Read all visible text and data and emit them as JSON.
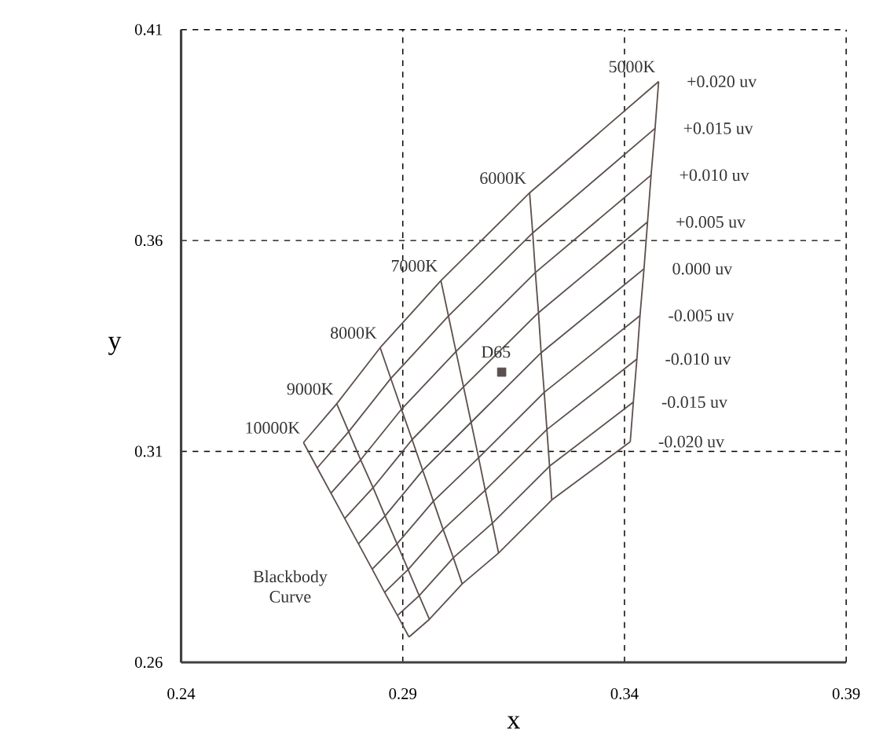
{
  "chart_data": {
    "type": "line",
    "xlabel": "x",
    "ylabel": "y",
    "xlim": [
      0.24,
      0.39
    ],
    "ylim": [
      0.26,
      0.41
    ],
    "xticks": [
      0.24,
      0.29,
      0.34,
      0.39
    ],
    "yticks": [
      0.26,
      0.31,
      0.36,
      0.41
    ],
    "grid": true,
    "annotations": [
      "Blackbody Curve"
    ],
    "series": [
      {
        "name": "+0.020 uv",
        "color": "#5e514d",
        "x": [
          0.2676,
          0.2751,
          0.2849,
          0.2986,
          0.3186,
          0.3477
        ],
        "values": [
          0.3121,
          0.3213,
          0.3346,
          0.3505,
          0.3713,
          0.3977
        ]
      },
      {
        "name": "+0.015 uv",
        "color": "#5e514d",
        "x": [
          0.2707,
          0.2778,
          0.2873,
          0.3003,
          0.3193,
          0.3469
        ],
        "values": [
          0.3061,
          0.3147,
          0.3273,
          0.3421,
          0.3618,
          0.3866
        ]
      },
      {
        "name": "+0.010 uv",
        "color": "#5e514d",
        "x": [
          0.2738,
          0.2805,
          0.2897,
          0.302,
          0.3199,
          0.346
        ],
        "values": [
          0.3001,
          0.308,
          0.32,
          0.3337,
          0.3524,
          0.3755
        ]
      },
      {
        "name": "+0.005 uv",
        "color": "#5e514d",
        "x": [
          0.2769,
          0.2833,
          0.2921,
          0.3037,
          0.3206,
          0.3452
        ],
        "values": [
          0.2941,
          0.3014,
          0.3128,
          0.3253,
          0.3429,
          0.3644
        ]
      },
      {
        "name": "0.000 uv",
        "color": "#574f4e",
        "x": [
          0.28,
          0.286,
          0.2945,
          0.3054,
          0.3212,
          0.3444
        ],
        "values": [
          0.2881,
          0.2947,
          0.3055,
          0.3169,
          0.3334,
          0.3533
        ]
      },
      {
        "name": "-0.005 uv",
        "color": "#5e514d",
        "x": [
          0.2831,
          0.2887,
          0.2969,
          0.3071,
          0.3219,
          0.3435
        ],
        "values": [
          0.2821,
          0.2881,
          0.2982,
          0.3085,
          0.324,
          0.3422
        ]
      },
      {
        "name": "-0.010 uv",
        "color": "#5e514d",
        "x": [
          0.2859,
          0.2912,
          0.2991,
          0.3086,
          0.3225,
          0.3428
        ],
        "values": [
          0.2766,
          0.282,
          0.2915,
          0.3008,
          0.3152,
          0.3319
        ]
      },
      {
        "name": "-0.015 uv",
        "color": "#5e514d",
        "x": [
          0.2888,
          0.2937,
          0.3014,
          0.3102,
          0.3231,
          0.342
        ],
        "values": [
          0.2711,
          0.2758,
          0.2848,
          0.293,
          0.3065,
          0.3217
        ]
      },
      {
        "name": "-0.020 uv",
        "color": "#5e514d",
        "x": [
          0.2914,
          0.296,
          0.3034,
          0.3116,
          0.3236,
          0.3413
        ],
        "values": [
          0.266,
          0.2702,
          0.2786,
          0.2859,
          0.2985,
          0.3123
        ]
      },
      {
        "name": "10000K",
        "color": "#5e514d",
        "x": [
          0.2914,
          0.2888,
          0.2859,
          0.2831,
          0.28,
          0.2769,
          0.2738,
          0.2707,
          0.2676
        ],
        "values": [
          0.266,
          0.2711,
          0.2766,
          0.2821,
          0.2881,
          0.2941,
          0.3001,
          0.3061,
          0.3121
        ]
      },
      {
        "name": "9000K",
        "color": "#5e514d",
        "x": [
          0.296,
          0.2937,
          0.2912,
          0.2887,
          0.286,
          0.2833,
          0.2805,
          0.2778,
          0.2751
        ],
        "values": [
          0.2702,
          0.2758,
          0.282,
          0.2881,
          0.2947,
          0.3014,
          0.308,
          0.3147,
          0.3213
        ]
      },
      {
        "name": "8000K",
        "color": "#5e514d",
        "x": [
          0.3034,
          0.3014,
          0.2991,
          0.2969,
          0.2945,
          0.2921,
          0.2897,
          0.2873,
          0.2849
        ],
        "values": [
          0.2786,
          0.2848,
          0.2915,
          0.2982,
          0.3055,
          0.3128,
          0.32,
          0.3273,
          0.3346
        ]
      },
      {
        "name": "7000K",
        "color": "#5e514d",
        "x": [
          0.3116,
          0.3102,
          0.3086,
          0.3071,
          0.3054,
          0.3037,
          0.302,
          0.3003,
          0.2986
        ],
        "values": [
          0.2859,
          0.293,
          0.3008,
          0.3085,
          0.3169,
          0.3253,
          0.3337,
          0.3421,
          0.3505
        ]
      },
      {
        "name": "6000K",
        "color": "#5e514d",
        "x": [
          0.3236,
          0.3231,
          0.3225,
          0.3219,
          0.3212,
          0.3206,
          0.3199,
          0.3193,
          0.3186
        ],
        "values": [
          0.2985,
          0.3065,
          0.3152,
          0.324,
          0.3334,
          0.3429,
          0.3524,
          0.3618,
          0.3713
        ]
      },
      {
        "name": "5000K",
        "color": "#5e514d",
        "x": [
          0.3413,
          0.342,
          0.3428,
          0.3435,
          0.3444,
          0.3452,
          0.346,
          0.3469,
          0.3477
        ],
        "values": [
          0.3123,
          0.3217,
          0.3319,
          0.3422,
          0.3533,
          0.3644,
          0.3755,
          0.3866,
          0.3977
        ]
      },
      {
        "name": "D65",
        "type": "scatter",
        "marker": "square",
        "color": "#5a5050",
        "x": [
          0.3123
        ],
        "values": [
          0.3288
        ]
      }
    ]
  }
}
